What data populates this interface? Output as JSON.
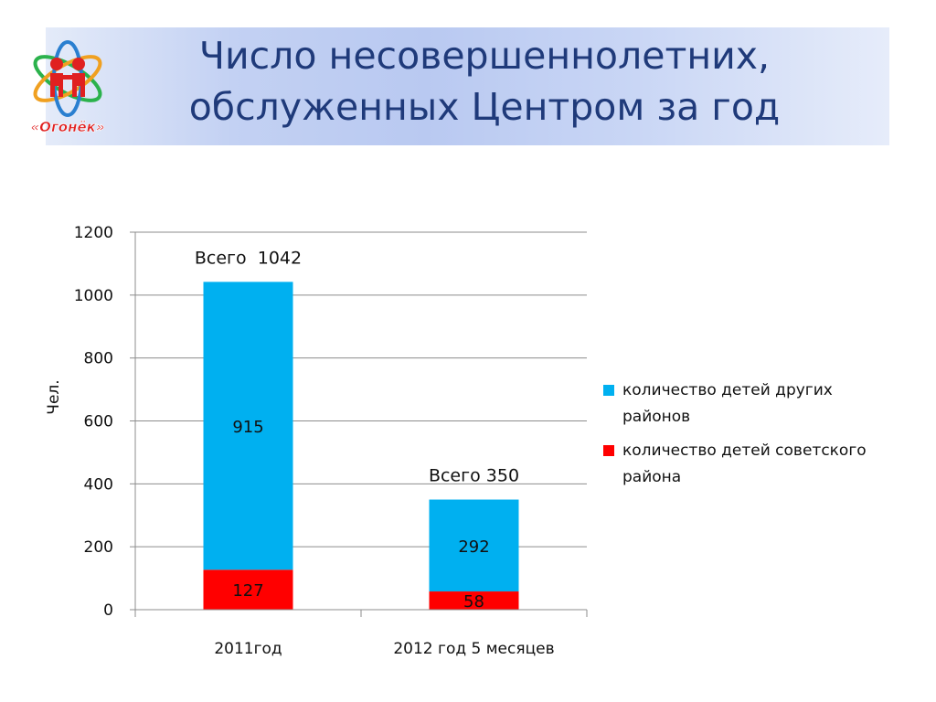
{
  "title_line1": "Число несовершеннолетних,",
  "title_line2": "обслуженных Центром за год",
  "logo": {
    "text": "«Огонёк»",
    "icon": "children-atom-logo-icon"
  },
  "chart_data": {
    "type": "bar",
    "stacked": true,
    "ylabel": "Чел.",
    "xlabel": "",
    "ylim": [
      0,
      1200
    ],
    "yticks": [
      0,
      200,
      400,
      600,
      800,
      1000,
      1200
    ],
    "grid": true,
    "legend_position": "right",
    "categories": [
      "2011год",
      "2012 год 5 месяцев"
    ],
    "series": [
      {
        "name": "количество детей советского района",
        "color": "#ff0000",
        "values": [
          127,
          58
        ]
      },
      {
        "name": "количество детей других районов",
        "color": "#00b0f0",
        "values": [
          915,
          292
        ]
      }
    ],
    "totals_labels": [
      "Всего  1042",
      "Всего 350"
    ]
  }
}
